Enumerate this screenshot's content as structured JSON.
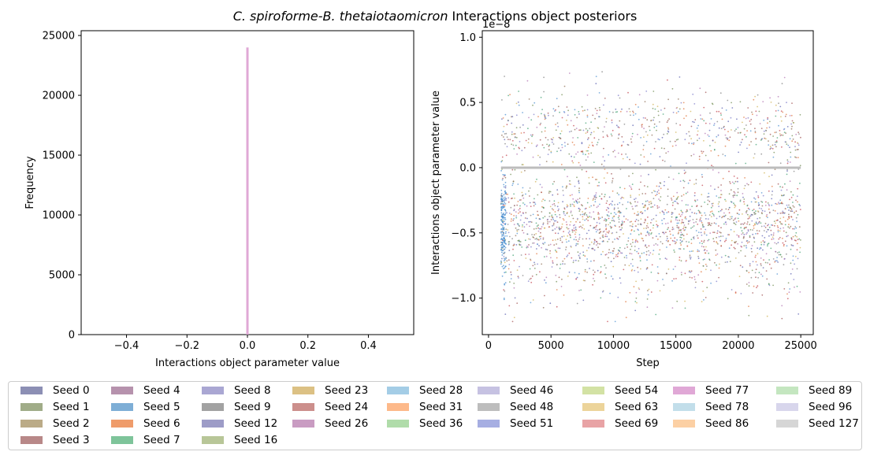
{
  "figure": {
    "title_italic": "C. spiroforme-B. thetaiotaomicron",
    "title_rest": " Interactions object posteriors"
  },
  "chart_data": [
    {
      "type": "bar",
      "subtype": "histogram",
      "title": "",
      "xlabel": "Interactions object parameter value",
      "ylabel": "Frequency",
      "xlim": [
        -0.55,
        0.55
      ],
      "ylim": [
        0,
        25400
      ],
      "xticks": [
        "−0.4",
        "−0.2",
        "0.0",
        "0.2",
        "0.4"
      ],
      "xtick_values": [
        -0.4,
        -0.2,
        0.0,
        0.2,
        0.4
      ],
      "yticks": [
        "0",
        "5000",
        "10000",
        "15000",
        "20000",
        "25000"
      ],
      "ytick_values": [
        0,
        5000,
        10000,
        15000,
        20000,
        25000
      ],
      "bars": [
        {
          "x": 0.0,
          "value": 24000,
          "color": "#e0a8d6"
        }
      ],
      "grid": false
    },
    {
      "type": "scatter",
      "title": "",
      "xlabel": "Step",
      "ylabel": "Interactions object parameter value",
      "offset_label": "1e−8",
      "xlim": [
        -500,
        26000
      ],
      "ylim": [
        -1.28,
        1.05
      ],
      "xticks": [
        "0",
        "5000",
        "10000",
        "15000",
        "20000",
        "25000"
      ],
      "xtick_values": [
        0,
        5000,
        10000,
        15000,
        20000,
        25000
      ],
      "yticks": [
        "−1.0",
        "−0.5",
        "0.0",
        "0.5",
        "1.0"
      ],
      "ytick_values": [
        -1.0,
        -0.5,
        0.0,
        0.5,
        1.0
      ],
      "steps_range": [
        1000,
        25000
      ],
      "constant_line": {
        "y": 0.0,
        "color": "#bdbdbd"
      },
      "clusters": [
        {
          "center": -0.42,
          "spread": 0.18,
          "weight": 0.62
        },
        {
          "center": 0.28,
          "spread": 0.16,
          "weight": 0.25
        },
        {
          "center": -0.75,
          "spread": 0.18,
          "weight": 0.13
        }
      ],
      "y_extremes": [
        -1.18,
        0.98
      ],
      "grid": false
    }
  ],
  "legend": {
    "placement": "bottom",
    "items": [
      {
        "label": "Seed 0",
        "color": "#8c8fb4"
      },
      {
        "label": "Seed 1",
        "color": "#a0ac88"
      },
      {
        "label": "Seed 2",
        "color": "#bbab87"
      },
      {
        "label": "Seed 3",
        "color": "#b88888"
      },
      {
        "label": "Seed 4",
        "color": "#b692ad"
      },
      {
        "label": "Seed 5",
        "color": "#7eaed6"
      },
      {
        "label": "Seed 6",
        "color": "#ef9c6b"
      },
      {
        "label": "Seed 7",
        "color": "#7ec49a"
      },
      {
        "label": "Seed 8",
        "color": "#aaa7d3"
      },
      {
        "label": "Seed 9",
        "color": "#a2a2a2"
      },
      {
        "label": "Seed 12",
        "color": "#9d9cc7"
      },
      {
        "label": "Seed 16",
        "color": "#b8c698"
      },
      {
        "label": "Seed 23",
        "color": "#dcc184"
      },
      {
        "label": "Seed 24",
        "color": "#cc8f8c"
      },
      {
        "label": "Seed 26",
        "color": "#c99cc2"
      },
      {
        "label": "Seed 28",
        "color": "#a4cde6"
      },
      {
        "label": "Seed 31",
        "color": "#fdb98a"
      },
      {
        "label": "Seed 36",
        "color": "#b0dcaa"
      },
      {
        "label": "Seed 46",
        "color": "#c6c2e2"
      },
      {
        "label": "Seed 48",
        "color": "#bdbdbd"
      },
      {
        "label": "Seed 51",
        "color": "#a6aee2"
      },
      {
        "label": "Seed 54",
        "color": "#d3e2a4"
      },
      {
        "label": "Seed 63",
        "color": "#ecd49a"
      },
      {
        "label": "Seed 69",
        "color": "#e8a3a5"
      },
      {
        "label": "Seed 77",
        "color": "#e0a8d6"
      },
      {
        "label": "Seed 78",
        "color": "#c2deea"
      },
      {
        "label": "Seed 86",
        "color": "#fcd0a4"
      },
      {
        "label": "Seed 89",
        "color": "#c4e6c0"
      },
      {
        "label": "Seed 96",
        "color": "#d8d6ec"
      },
      {
        "label": "Seed 127",
        "color": "#d6d6d6"
      }
    ]
  },
  "scatter_point_colors": [
    "#5a5fb0",
    "#6e8a4e",
    "#c2424c",
    "#8a6a50",
    "#a05050",
    "#4a8fd0",
    "#e0743a",
    "#3fa070",
    "#7a78c8",
    "#808080",
    "#b070b0",
    "#d0b050"
  ]
}
